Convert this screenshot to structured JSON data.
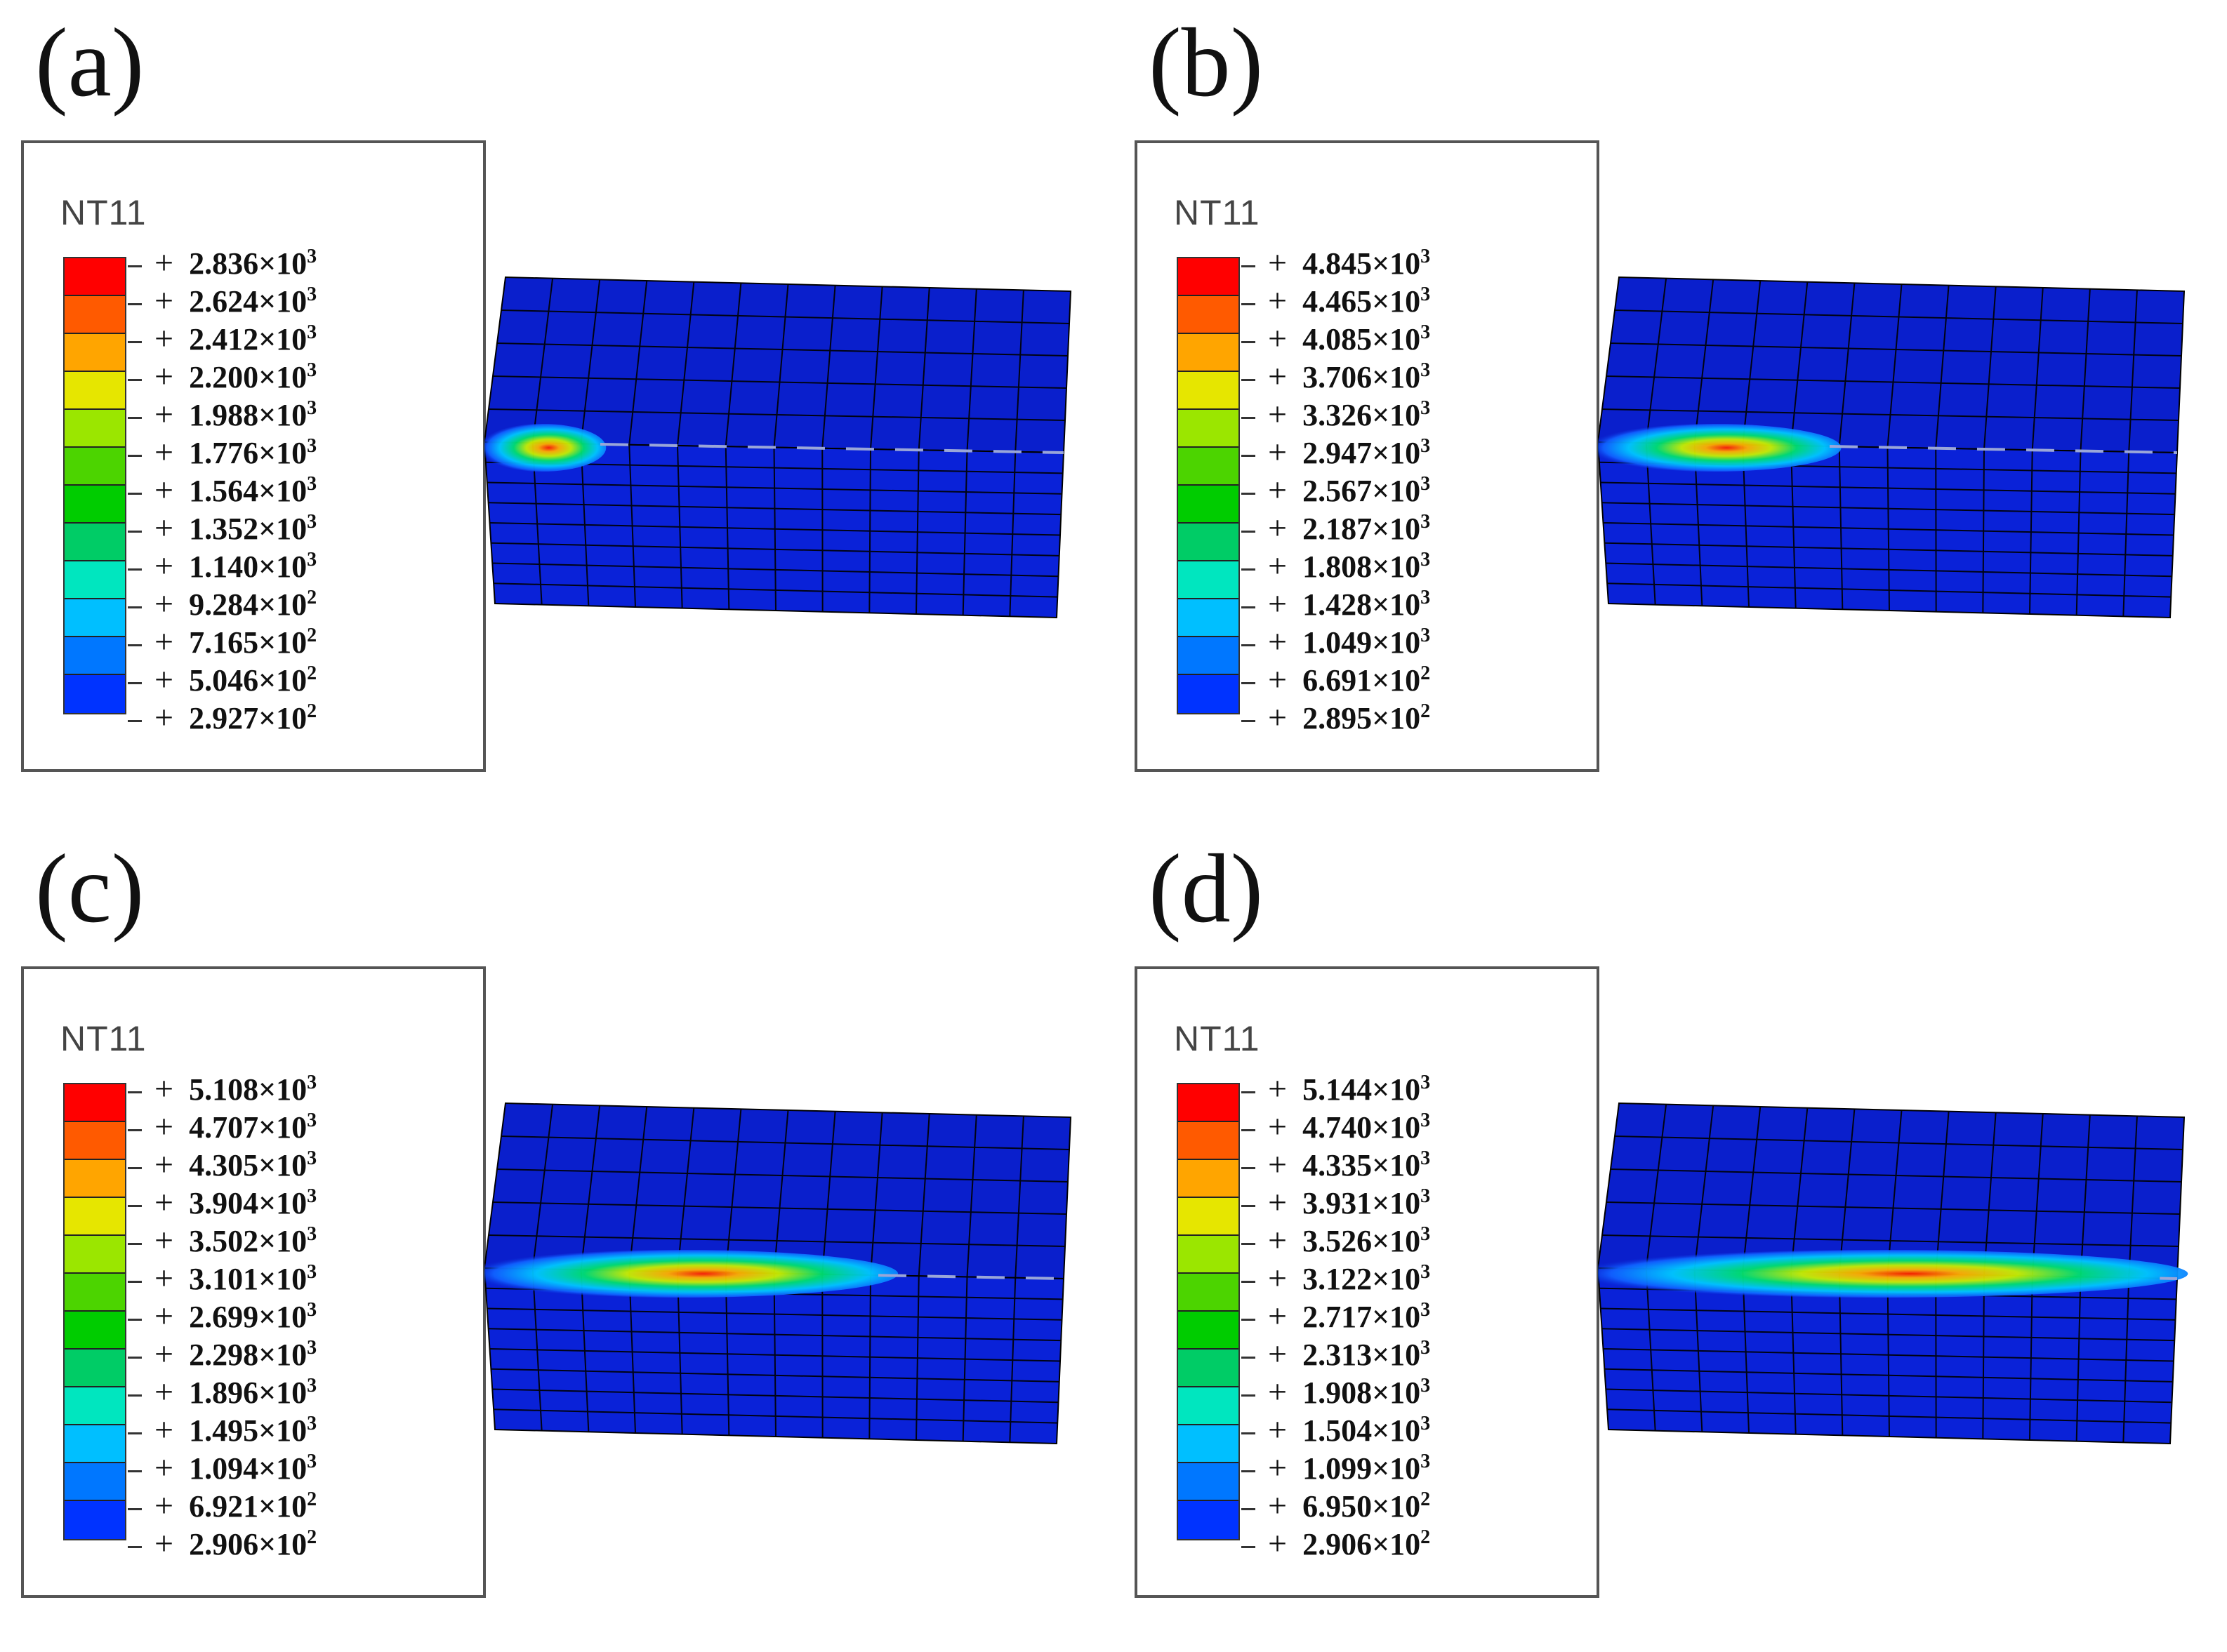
{
  "figure": {
    "legend_colors": [
      "#ff0000",
      "#ff5a00",
      "#ffa500",
      "#e6e600",
      "#9be600",
      "#4cd400",
      "#00cc00",
      "#00cc66",
      "#00e6bf",
      "#00bfff",
      "#0077ff",
      "#0033ff",
      "#0000e6"
    ],
    "mesh_color": "#0a1fcc",
    "panels": [
      {
        "label": "(a)",
        "legend_title": "NT11",
        "ticks": [
          {
            "mantissa": "2.836",
            "exp": "3"
          },
          {
            "mantissa": "2.624",
            "exp": "3"
          },
          {
            "mantissa": "2.412",
            "exp": "3"
          },
          {
            "mantissa": "2.200",
            "exp": "3"
          },
          {
            "mantissa": "1.988",
            "exp": "3"
          },
          {
            "mantissa": "1.776",
            "exp": "3"
          },
          {
            "mantissa": "1.564",
            "exp": "3"
          },
          {
            "mantissa": "1.352",
            "exp": "3"
          },
          {
            "mantissa": "1.140",
            "exp": "3"
          },
          {
            "mantissa": "9.284",
            "exp": "2"
          },
          {
            "mantissa": "7.165",
            "exp": "2"
          },
          {
            "mantissa": "5.046",
            "exp": "2"
          },
          {
            "mantissa": "2.927",
            "exp": "2"
          }
        ],
        "heat_extent": 0.2
      },
      {
        "label": "(b)",
        "legend_title": "NT11",
        "ticks": [
          {
            "mantissa": "4.845",
            "exp": "3"
          },
          {
            "mantissa": "4.465",
            "exp": "3"
          },
          {
            "mantissa": "4.085",
            "exp": "3"
          },
          {
            "mantissa": "3.706",
            "exp": "3"
          },
          {
            "mantissa": "3.326",
            "exp": "3"
          },
          {
            "mantissa": "2.947",
            "exp": "3"
          },
          {
            "mantissa": "2.567",
            "exp": "3"
          },
          {
            "mantissa": "2.187",
            "exp": "3"
          },
          {
            "mantissa": "1.808",
            "exp": "3"
          },
          {
            "mantissa": "1.428",
            "exp": "3"
          },
          {
            "mantissa": "1.049",
            "exp": "3"
          },
          {
            "mantissa": "6.691",
            "exp": "2"
          },
          {
            "mantissa": "2.895",
            "exp": "2"
          }
        ],
        "heat_extent": 0.4
      },
      {
        "label": "(c)",
        "legend_title": "NT11",
        "ticks": [
          {
            "mantissa": "5.108",
            "exp": "3"
          },
          {
            "mantissa": "4.707",
            "exp": "3"
          },
          {
            "mantissa": "4.305",
            "exp": "3"
          },
          {
            "mantissa": "3.904",
            "exp": "3"
          },
          {
            "mantissa": "3.502",
            "exp": "3"
          },
          {
            "mantissa": "3.101",
            "exp": "3"
          },
          {
            "mantissa": "2.699",
            "exp": "3"
          },
          {
            "mantissa": "2.298",
            "exp": "3"
          },
          {
            "mantissa": "1.896",
            "exp": "3"
          },
          {
            "mantissa": "1.495",
            "exp": "3"
          },
          {
            "mantissa": "1.094",
            "exp": "3"
          },
          {
            "mantissa": "6.921",
            "exp": "2"
          },
          {
            "mantissa": "2.906",
            "exp": "2"
          }
        ],
        "heat_extent": 0.68
      },
      {
        "label": "(d)",
        "legend_title": "NT11",
        "ticks": [
          {
            "mantissa": "5.144",
            "exp": "3"
          },
          {
            "mantissa": "4.740",
            "exp": "3"
          },
          {
            "mantissa": "4.335",
            "exp": "3"
          },
          {
            "mantissa": "3.931",
            "exp": "3"
          },
          {
            "mantissa": "3.526",
            "exp": "3"
          },
          {
            "mantissa": "3.122",
            "exp": "3"
          },
          {
            "mantissa": "2.717",
            "exp": "3"
          },
          {
            "mantissa": "2.313",
            "exp": "3"
          },
          {
            "mantissa": "1.908",
            "exp": "3"
          },
          {
            "mantissa": "1.504",
            "exp": "3"
          },
          {
            "mantissa": "1.099",
            "exp": "3"
          },
          {
            "mantissa": "6.950",
            "exp": "2"
          },
          {
            "mantissa": "2.906",
            "exp": "2"
          }
        ],
        "heat_extent": 0.97
      }
    ]
  }
}
